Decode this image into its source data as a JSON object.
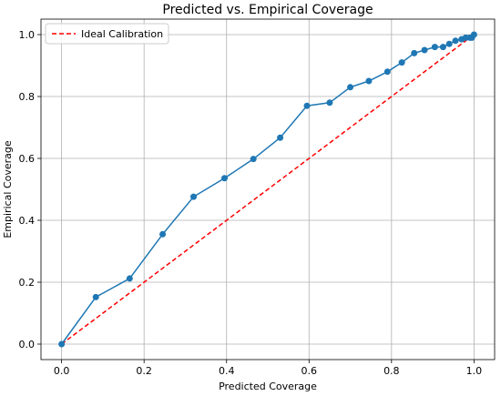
{
  "chart_data": {
    "type": "line",
    "title": "Predicted vs. Empirical Coverage",
    "xlabel": "Predicted Coverage",
    "ylabel": "Empirical Coverage",
    "xlim": [
      -0.05,
      1.05
    ],
    "ylim": [
      -0.05,
      1.05
    ],
    "xticks": [
      "0.0",
      "0.2",
      "0.4",
      "0.6",
      "0.8",
      "1.0"
    ],
    "yticks": [
      "0.0",
      "0.2",
      "0.4",
      "0.6",
      "0.8",
      "1.0"
    ],
    "grid": true,
    "legend": {
      "position": "top-left",
      "entries": [
        "Ideal Calibration"
      ]
    },
    "series": [
      {
        "type": "line-markers",
        "color": "#1f77b4",
        "x": [
          0.0,
          0.083,
          0.165,
          0.245,
          0.32,
          0.395,
          0.465,
          0.53,
          0.595,
          0.65,
          0.7,
          0.745,
          0.79,
          0.825,
          0.855,
          0.88,
          0.905,
          0.925,
          0.94,
          0.955,
          0.97,
          0.98,
          0.99,
          0.995,
          1.0
        ],
        "y": [
          0.0,
          0.152,
          0.212,
          0.355,
          0.476,
          0.536,
          0.598,
          0.667,
          0.77,
          0.78,
          0.83,
          0.85,
          0.88,
          0.91,
          0.94,
          0.95,
          0.96,
          0.96,
          0.97,
          0.98,
          0.985,
          0.99,
          0.99,
          0.99,
          1.0
        ]
      },
      {
        "name": "Ideal Calibration",
        "type": "dashed-line",
        "color": "#ff0000",
        "x": [
          0.0,
          1.0
        ],
        "y": [
          0.0,
          1.0
        ]
      }
    ]
  }
}
